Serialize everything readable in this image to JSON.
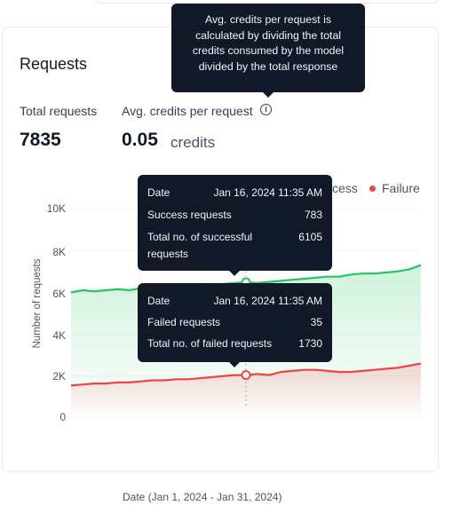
{
  "card": {
    "title": "Requests",
    "total_label": "Total requests",
    "total_value": "7835",
    "avg_label": "Avg. credits per request",
    "avg_value": "0.05",
    "avg_unit": "credits",
    "info_icon": "info-icon"
  },
  "info_tooltip": {
    "lines": [
      "Avg. credits per request is",
      "calculated by dividing the total",
      "credits consumed by the model",
      "divided by the total response"
    ]
  },
  "success_tooltip": {
    "date_label": "Date",
    "date_value": "Jan 16, 2024 11:35 AM",
    "requests_label": "Success requests",
    "requests_value": "783",
    "total_label_1": "Total no. of successful",
    "total_label_2": "requests",
    "total_value": "6105"
  },
  "failure_tooltip": {
    "date_label": "Date",
    "date_value": "Jan 16, 2024 11:35 AM",
    "requests_label": "Failed requests",
    "requests_value": "35",
    "total_label": "Total no. of failed requests",
    "total_value": "1730"
  },
  "chart_data": {
    "type": "area",
    "ylabel": "Number of requests",
    "xlabel": "Date (Jan 1, 2024 - Jan 31, 2024)",
    "ylim": [
      0,
      10000
    ],
    "yticks": [
      "0",
      "2K",
      "4K",
      "6K",
      "8K",
      "10K"
    ],
    "ytick_values": [
      0,
      2000,
      4000,
      6000,
      8000,
      10000
    ],
    "grid": true,
    "legend": {
      "placement": "top-right",
      "success_visible": "cess",
      "failure": "Failure"
    },
    "x": [
      1,
      2,
      3,
      4,
      5,
      6,
      7,
      8,
      9,
      10,
      11,
      12,
      13,
      14,
      15,
      16,
      17,
      18,
      19,
      20,
      21,
      22,
      23,
      24,
      25,
      26,
      27,
      28,
      29,
      30,
      31
    ],
    "series": [
      {
        "name": "Success",
        "color": "#22c55e",
        "values": [
          6000,
          6100,
          6050,
          6100,
          6150,
          6100,
          6200,
          6250,
          6250,
          6300,
          6300,
          6350,
          6400,
          6400,
          6450,
          6480,
          6450,
          6500,
          6550,
          6600,
          6650,
          6700,
          6750,
          6750,
          6850,
          6900,
          6900,
          6950,
          7000,
          7100,
          7300
        ]
      },
      {
        "name": "Failure",
        "color": "#ef4444",
        "values": [
          1550,
          1600,
          1650,
          1650,
          1700,
          1700,
          1750,
          1800,
          1800,
          1850,
          1850,
          1900,
          1950,
          2000,
          2050,
          2050,
          2100,
          2050,
          2200,
          2250,
          2300,
          2300,
          2250,
          2200,
          2200,
          2250,
          2300,
          2350,
          2400,
          2500,
          2600
        ]
      }
    ],
    "highlight_x": 16
  }
}
